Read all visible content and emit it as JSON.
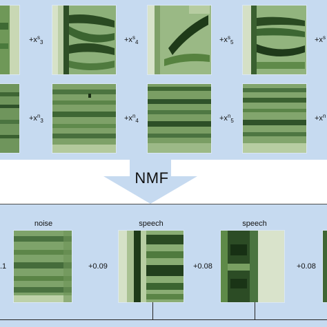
{
  "top_row1_coefficients": [
    {
      "base": "+x",
      "sup": "s",
      "sub": "3"
    },
    {
      "base": "+x",
      "sup": "s",
      "sub": "4"
    },
    {
      "base": "+x",
      "sup": "s",
      "sub": "5"
    },
    {
      "base": "+x",
      "sup": "s",
      "sub": ""
    }
  ],
  "top_row2_coefficients": [
    {
      "base": "+x",
      "sup": "n",
      "sub": "3"
    },
    {
      "base": "+x",
      "sup": "n",
      "sub": "4"
    },
    {
      "base": "+x",
      "sup": "n",
      "sub": "5"
    },
    {
      "base": "+x",
      "sup": "n",
      "sub": ""
    }
  ],
  "nmf_label": "NMF",
  "basis_labels": [
    "noise",
    "speech",
    "speech"
  ],
  "bottom_coefficients": [
    ".1",
    "+0.09",
    "+0.08",
    "+0.08"
  ],
  "colors": {
    "panel_bg": "#c6daf0",
    "spectrogram_dark": "#1f3a1a",
    "spectrogram_mid": "#4f7a3e",
    "spectrogram_light": "#b9cfa0"
  }
}
